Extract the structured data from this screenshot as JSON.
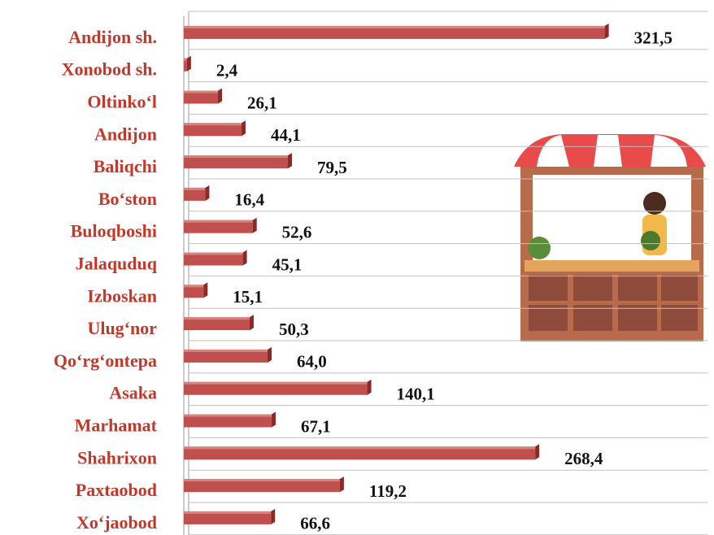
{
  "chart_data": {
    "type": "bar",
    "orientation": "horizontal",
    "categories": [
      "Andijon sh.",
      "Xonobod sh.",
      "Oltinko‘l",
      "Andijon",
      "Baliqchi",
      "Bo‘ston",
      "Buloqboshi",
      "Jalaquduq",
      "Izboskan",
      "Ulug‘nor",
      "Qo‘rg‘ontepa",
      "Asaka",
      "Marhamat",
      "Shahrixon",
      "Paxtaobod",
      "Xo‘jaobod"
    ],
    "values": [
      321.5,
      2.4,
      26.1,
      44.1,
      79.5,
      16.4,
      52.6,
      45.1,
      15.1,
      50.3,
      64.0,
      140.1,
      67.1,
      268.4,
      119.2,
      66.6
    ],
    "value_labels": [
      "321,5",
      "2,4",
      "26,1",
      "44,1",
      "79,5",
      "16,4",
      "52,6",
      "45,1",
      "15,1",
      "50,3",
      "64,0",
      "140,1",
      "67,1",
      "268,4",
      "119,2",
      "66,6"
    ],
    "color": "#c0504d",
    "xlim": [
      0,
      400
    ]
  }
}
